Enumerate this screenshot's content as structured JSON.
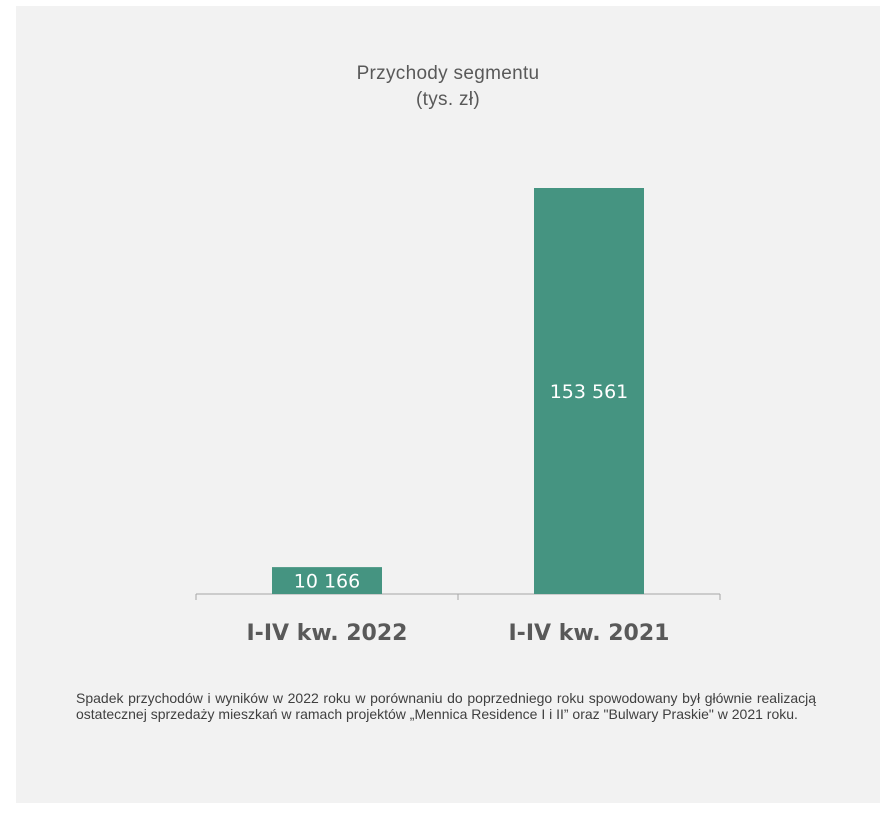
{
  "chart_data": {
    "type": "bar",
    "title": "Przychody segmentu",
    "subtitle": "(tys. zł)",
    "categories": [
      "I-IV kw. 2022",
      "I-IV kw. 2021"
    ],
    "values": [
      10166,
      153561
    ],
    "value_labels": [
      "10 166",
      "153 561"
    ],
    "bar_color": "#459481",
    "grid": false,
    "legend": "none"
  },
  "caption": "Spadek przychodów i wyników w 2022 roku w porównaniu do poprzedniego roku spowodowany był głównie realizacją ostatecznej sprzedaży mieszkań w ramach projektów „Mennica Residence I i II” oraz \"Bulwary Praskie\" w 2021 roku."
}
